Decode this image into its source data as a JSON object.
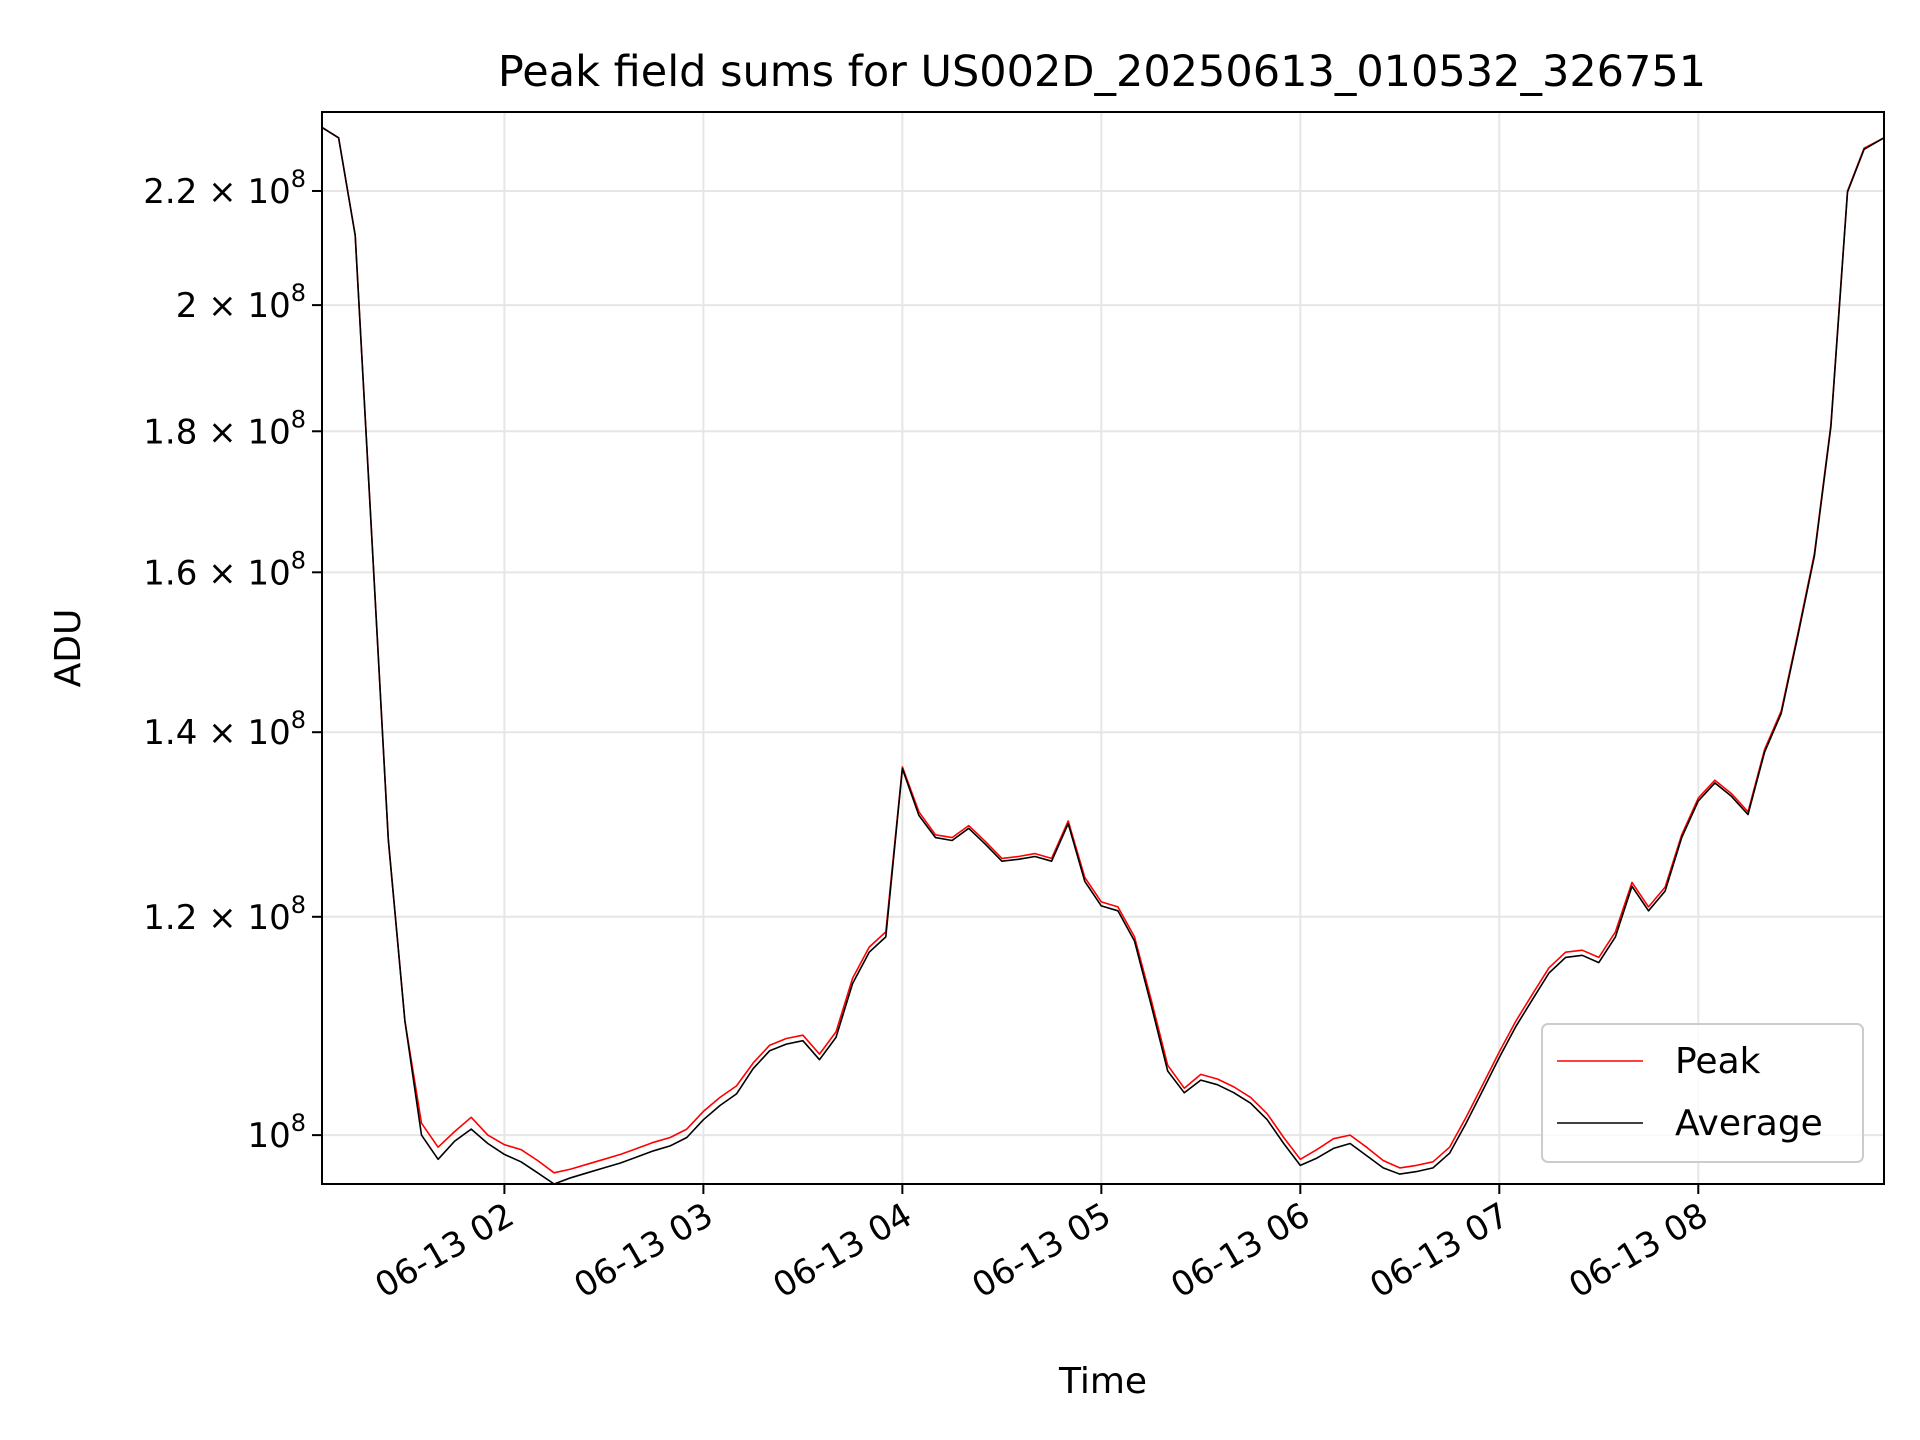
{
  "chart_data": {
    "type": "line",
    "title": "Peak field sums for US002D_20250613_010532_326751",
    "xlabel": "Time",
    "ylabel": "ADU",
    "y_scale": "log",
    "xlim": [
      "2025-06-13 01:05",
      "2025-06-13 08:56"
    ],
    "ylim": [
      96000000,
      235000000
    ],
    "grid": true,
    "legend_position": "lower right",
    "x_ticks": [
      {
        "value": "2025-06-13 02:00",
        "label": "06-13 02"
      },
      {
        "value": "2025-06-13 03:00",
        "label": "06-13 03"
      },
      {
        "value": "2025-06-13 04:00",
        "label": "06-13 04"
      },
      {
        "value": "2025-06-13 05:00",
        "label": "06-13 05"
      },
      {
        "value": "2025-06-13 06:00",
        "label": "06-13 06"
      },
      {
        "value": "2025-06-13 07:00",
        "label": "06-13 07"
      },
      {
        "value": "2025-06-13 08:00",
        "label": "06-13 08"
      }
    ],
    "y_ticks": [
      {
        "value": 100000000,
        "mantissa": "",
        "exponent": "8"
      },
      {
        "value": 120000000,
        "mantissa": "1.2",
        "exponent": "8"
      },
      {
        "value": 140000000,
        "mantissa": "1.4",
        "exponent": "8"
      },
      {
        "value": 160000000,
        "mantissa": "1.6",
        "exponent": "8"
      },
      {
        "value": 180000000,
        "mantissa": "1.8",
        "exponent": "8"
      },
      {
        "value": 200000000,
        "mantissa": "2",
        "exponent": "8"
      },
      {
        "value": 220000000,
        "mantissa": "2.2",
        "exponent": "8"
      }
    ],
    "colors": {
      "Peak": "#ff0000",
      "Average": "#000000",
      "grid": "#e6e6e6"
    },
    "x": [
      "2025-06-13 01:05",
      "2025-06-13 01:10",
      "2025-06-13 01:15",
      "2025-06-13 01:20",
      "2025-06-13 01:25",
      "2025-06-13 01:30",
      "2025-06-13 01:35",
      "2025-06-13 01:40",
      "2025-06-13 01:45",
      "2025-06-13 01:50",
      "2025-06-13 01:55",
      "2025-06-13 02:00",
      "2025-06-13 02:05",
      "2025-06-13 02:10",
      "2025-06-13 02:15",
      "2025-06-13 02:20",
      "2025-06-13 02:25",
      "2025-06-13 02:30",
      "2025-06-13 02:35",
      "2025-06-13 02:40",
      "2025-06-13 02:45",
      "2025-06-13 02:50",
      "2025-06-13 02:55",
      "2025-06-13 03:00",
      "2025-06-13 03:05",
      "2025-06-13 03:10",
      "2025-06-13 03:15",
      "2025-06-13 03:20",
      "2025-06-13 03:25",
      "2025-06-13 03:30",
      "2025-06-13 03:35",
      "2025-06-13 03:40",
      "2025-06-13 03:45",
      "2025-06-13 03:50",
      "2025-06-13 03:55",
      "2025-06-13 04:00",
      "2025-06-13 04:05",
      "2025-06-13 04:10",
      "2025-06-13 04:15",
      "2025-06-13 04:20",
      "2025-06-13 04:25",
      "2025-06-13 04:30",
      "2025-06-13 04:35",
      "2025-06-13 04:40",
      "2025-06-13 04:45",
      "2025-06-13 04:50",
      "2025-06-13 04:55",
      "2025-06-13 05:00",
      "2025-06-13 05:05",
      "2025-06-13 05:10",
      "2025-06-13 05:15",
      "2025-06-13 05:20",
      "2025-06-13 05:25",
      "2025-06-13 05:30",
      "2025-06-13 05:35",
      "2025-06-13 05:40",
      "2025-06-13 05:45",
      "2025-06-13 05:50",
      "2025-06-13 05:55",
      "2025-06-13 06:00",
      "2025-06-13 06:05",
      "2025-06-13 06:10",
      "2025-06-13 06:15",
      "2025-06-13 06:20",
      "2025-06-13 06:25",
      "2025-06-13 06:30",
      "2025-06-13 06:35",
      "2025-06-13 06:40",
      "2025-06-13 06:45",
      "2025-06-13 06:50",
      "2025-06-13 06:55",
      "2025-06-13 07:00",
      "2025-06-13 07:05",
      "2025-06-13 07:10",
      "2025-06-13 07:15",
      "2025-06-13 07:20",
      "2025-06-13 07:25",
      "2025-06-13 07:30",
      "2025-06-13 07:35",
      "2025-06-13 07:40",
      "2025-06-13 07:45",
      "2025-06-13 07:50",
      "2025-06-13 07:55",
      "2025-06-13 08:00",
      "2025-06-13 08:05",
      "2025-06-13 08:10",
      "2025-06-13 08:15",
      "2025-06-13 08:20",
      "2025-06-13 08:25",
      "2025-06-13 08:30",
      "2025-06-13 08:35",
      "2025-06-13 08:40",
      "2025-06-13 08:45",
      "2025-06-13 08:50",
      "2025-06-13 08:56"
    ],
    "series": [
      {
        "name": "Peak",
        "values": [
          232000000,
          230000000,
          212000000,
          165000000,
          128000000,
          110000000,
          101000000,
          99000000,
          100300000,
          101500000,
          100000000,
          99200000,
          98800000,
          97900000,
          96900000,
          97200000,
          97600000,
          98000000,
          98400000,
          98900000,
          99400000,
          99800000,
          100500000,
          102000000,
          103200000,
          104200000,
          106200000,
          107800000,
          108400000,
          108700000,
          107000000,
          109000000,
          114000000,
          117000000,
          118500000,
          136000000,
          131000000,
          128500000,
          128200000,
          129500000,
          127800000,
          126000000,
          126200000,
          126500000,
          126000000,
          130000000,
          124000000,
          121500000,
          121000000,
          118000000,
          112000000,
          106000000,
          104000000,
          105200000,
          104800000,
          104100000,
          103200000,
          101800000,
          99800000,
          98000000,
          98800000,
          99700000,
          100000000,
          99000000,
          97900000,
          97300000,
          97500000,
          97800000,
          99000000,
          101500000,
          104300000,
          107200000,
          110000000,
          112500000,
          115000000,
          116500000,
          116700000,
          116000000,
          118500000,
          123500000,
          121000000,
          123000000,
          128500000,
          132500000,
          134500000,
          133000000,
          131000000,
          138000000,
          142500000,
          152000000,
          162500000,
          181000000,
          220000000,
          228000000,
          230000000
        ]
      },
      {
        "name": "Average",
        "values": [
          232000000,
          230000000,
          212000000,
          165000000,
          128000000,
          110000000,
          100000000,
          98000000,
          99500000,
          100500000,
          99300000,
          98400000,
          97800000,
          96900000,
          96000000,
          96500000,
          96900000,
          97300000,
          97700000,
          98200000,
          98700000,
          99100000,
          99800000,
          101300000,
          102500000,
          103500000,
          105700000,
          107300000,
          107900000,
          108200000,
          106500000,
          108500000,
          113500000,
          116500000,
          118000000,
          135800000,
          130600000,
          128200000,
          127900000,
          129200000,
          127500000,
          125700000,
          125900000,
          126200000,
          125700000,
          129700000,
          123600000,
          121100000,
          120600000,
          117600000,
          111500000,
          105500000,
          103600000,
          104700000,
          104300000,
          103600000,
          102700000,
          101300000,
          99300000,
          97500000,
          98100000,
          98900000,
          99300000,
          98300000,
          97300000,
          96800000,
          97000000,
          97300000,
          98500000,
          101000000,
          103800000,
          106700000,
          109500000,
          112000000,
          114500000,
          116000000,
          116200000,
          115500000,
          118000000,
          123100000,
          120600000,
          122600000,
          128200000,
          132200000,
          134200000,
          132700000,
          130700000,
          137700000,
          142200000,
          151700000,
          162200000,
          180700000,
          219800000,
          227800000,
          230000000
        ]
      }
    ]
  }
}
